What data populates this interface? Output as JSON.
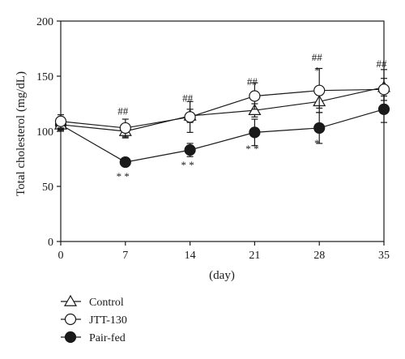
{
  "chart_data": {
    "type": "line",
    "xlabel": "(day)",
    "ylabel": "Total cholesterol (mg/dL)",
    "xlim": [
      0,
      35
    ],
    "ylim": [
      0,
      200
    ],
    "xticks": [
      0,
      7,
      14,
      21,
      28,
      35
    ],
    "yticks": [
      0,
      50,
      100,
      150,
      200
    ],
    "x": [
      0,
      7,
      14,
      21,
      28,
      35
    ],
    "grid": false,
    "legend_position": "bottom-left",
    "series": [
      {
        "name": "Control",
        "marker": "open-triangle",
        "values": [
          106,
          100,
          114,
          119,
          127,
          140
        ],
        "errors": [
          6,
          6,
          6,
          6,
          6,
          16
        ]
      },
      {
        "name": "JTT-130",
        "marker": "open-circle",
        "values": [
          109,
          103,
          113,
          132,
          137,
          138
        ],
        "errors": [
          6,
          8,
          14,
          12,
          20,
          10
        ]
      },
      {
        "name": "Pair-fed",
        "marker": "filled-circle",
        "values": [
          106,
          72,
          83,
          99,
          103,
          120
        ],
        "errors": [
          5,
          4,
          6,
          12,
          14,
          12
        ]
      }
    ],
    "annotations": [
      {
        "text": "##",
        "x": 7,
        "y": 115
      },
      {
        "text": "##",
        "x": 14,
        "y": 127
      },
      {
        "text": "##",
        "x": 21,
        "y": 142
      },
      {
        "text": "##",
        "x": 28,
        "y": 164
      },
      {
        "text": "##",
        "x": 35,
        "y": 158
      },
      {
        "text": "* *",
        "x": 7,
        "y": 56
      },
      {
        "text": "* *",
        "x": 14,
        "y": 66
      },
      {
        "text": "* *",
        "x": 21,
        "y": 81
      },
      {
        "text": "*",
        "x": 28,
        "y": 152
      },
      {
        "text": "*",
        "x": 28,
        "y": 86
      }
    ]
  }
}
